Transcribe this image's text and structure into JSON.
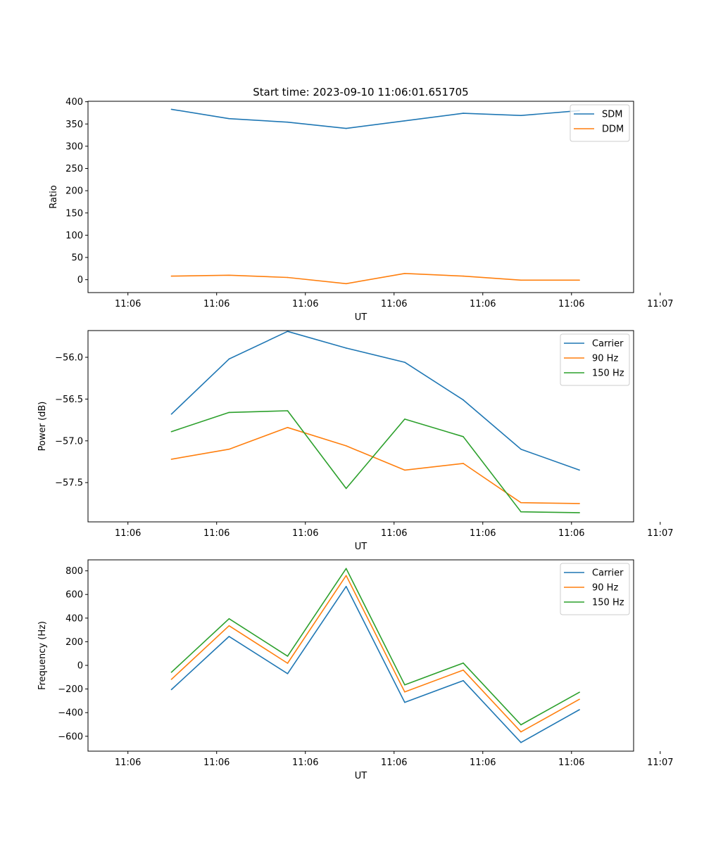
{
  "title": "Start time: 2023-09-10 11:06:01.651705",
  "colors": {
    "blue": "#1f77b4",
    "orange": "#ff7f0e",
    "green": "#2ca02c"
  },
  "chart_data": [
    {
      "type": "line",
      "title": "Start time: 2023-09-10 11:06:01.651705",
      "xlabel": "UT",
      "ylabel": "Ratio",
      "xlim": [
        -0.45,
        5.7
      ],
      "ylim": [
        -29,
        401
      ],
      "xticks": [
        0,
        1,
        2,
        3,
        4,
        5,
        6
      ],
      "xtick_labels": [
        "11:06",
        "11:06",
        "11:06",
        "11:06",
        "11:06",
        "11:06",
        "11:07"
      ],
      "yticks": [
        0,
        50,
        100,
        150,
        200,
        250,
        300,
        350,
        400
      ],
      "ytick_labels": [
        "0",
        "50",
        "100",
        "150",
        "200",
        "250",
        "300",
        "350",
        "400"
      ],
      "x": [
        0.49,
        1.14,
        1.8,
        2.46,
        3.12,
        3.78,
        4.43,
        5.09
      ],
      "legend_position": "top-right",
      "series": [
        {
          "name": "SDM",
          "color": "#1f77b4",
          "values": [
            383,
            362,
            354,
            340,
            357,
            374,
            369,
            380
          ]
        },
        {
          "name": "DDM",
          "color": "#ff7f0e",
          "values": [
            8,
            10,
            5,
            -9,
            14,
            8,
            -1,
            -1
          ]
        }
      ]
    },
    {
      "type": "line",
      "xlabel": "UT",
      "ylabel": "Power (dB)",
      "xlim": [
        -0.45,
        5.7
      ],
      "ylim": [
        -57.97,
        -55.68
      ],
      "xticks": [
        0,
        1,
        2,
        3,
        4,
        5,
        6
      ],
      "xtick_labels": [
        "11:06",
        "11:06",
        "11:06",
        "11:06",
        "11:06",
        "11:06",
        "11:07"
      ],
      "yticks": [
        -57.5,
        -57.0,
        -56.5,
        -56.0
      ],
      "ytick_labels": [
        "−57.5",
        "−57.0",
        "−56.5",
        "−56.0"
      ],
      "x": [
        0.49,
        1.14,
        1.8,
        2.46,
        3.12,
        3.78,
        4.43,
        5.09
      ],
      "legend_position": "top-right",
      "series": [
        {
          "name": "Carrier",
          "color": "#1f77b4",
          "values": [
            -56.68,
            -56.02,
            -55.69,
            -55.89,
            -56.06,
            -56.51,
            -57.1,
            -57.35
          ]
        },
        {
          "name": "90 Hz",
          "color": "#ff7f0e",
          "values": [
            -57.22,
            -57.1,
            -56.84,
            -57.06,
            -57.35,
            -57.27,
            -57.74,
            -57.75
          ]
        },
        {
          "name": "150 Hz",
          "color": "#2ca02c",
          "values": [
            -56.89,
            -56.66,
            -56.64,
            -57.57,
            -56.74,
            -56.95,
            -57.85,
            -57.86
          ]
        }
      ]
    },
    {
      "type": "line",
      "xlabel": "UT",
      "ylabel": "Frequency (Hz)",
      "xlim": [
        -0.45,
        5.7
      ],
      "ylim": [
        -726,
        893
      ],
      "xticks": [
        0,
        1,
        2,
        3,
        4,
        5,
        6
      ],
      "xtick_labels": [
        "11:06",
        "11:06",
        "11:06",
        "11:06",
        "11:06",
        "11:06",
        "11:07"
      ],
      "yticks": [
        -600,
        -400,
        -200,
        0,
        200,
        400,
        600,
        800
      ],
      "ytick_labels": [
        "−600",
        "−400",
        "−200",
        "0",
        "200",
        "400",
        "600",
        "800"
      ],
      "x": [
        0.49,
        1.14,
        1.8,
        2.46,
        3.12,
        3.78,
        4.43,
        5.09
      ],
      "legend_position": "top-right",
      "series": [
        {
          "name": "Carrier",
          "color": "#1f77b4",
          "values": [
            -205,
            245,
            -70,
            668,
            -313,
            -129,
            -653,
            -375
          ]
        },
        {
          "name": "90 Hz",
          "color": "#ff7f0e",
          "values": [
            -118,
            335,
            18,
            760,
            -225,
            -40,
            -563,
            -287
          ]
        },
        {
          "name": "150 Hz",
          "color": "#2ca02c",
          "values": [
            -58,
            395,
            78,
            820,
            -165,
            20,
            -503,
            -227
          ]
        }
      ]
    }
  ]
}
